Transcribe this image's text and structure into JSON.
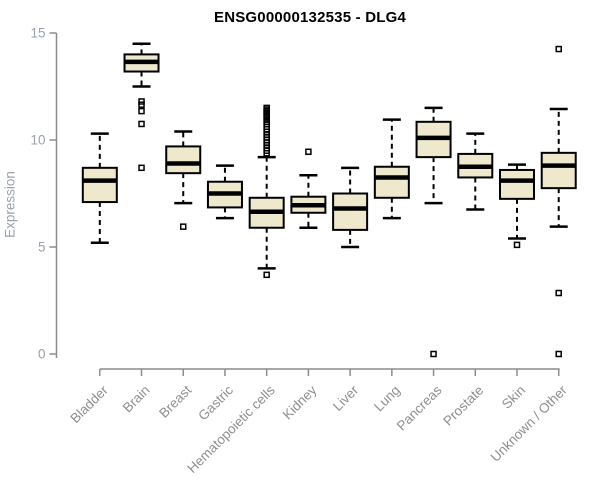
{
  "figure": {
    "title": "ENSG00000132535 - DLG4"
  },
  "chart_data": {
    "type": "boxplot",
    "title": "ENSG00000132535 - DLG4",
    "xlabel": "",
    "ylabel": "Expression",
    "ylim": [
      0,
      15
    ],
    "yticks": [
      0,
      5,
      10,
      15
    ],
    "grid": false,
    "legend": "none",
    "categories": [
      "Bladder",
      "Brain",
      "Breast",
      "Gastric",
      "Hematopoietic cells",
      "Kidney",
      "Liver",
      "Lung",
      "Pancreas",
      "Prostate",
      "Skin",
      "Unknown / Other"
    ],
    "boxes": [
      {
        "category": "Bladder",
        "whisker_low": 5.2,
        "q1": 7.1,
        "median": 8.1,
        "q3": 8.7,
        "whisker_high": 10.3,
        "outliers": []
      },
      {
        "category": "Brain",
        "whisker_low": 12.5,
        "q1": 13.2,
        "median": 13.65,
        "q3": 14.0,
        "whisker_high": 14.5,
        "outliers": [
          11.8,
          11.65,
          11.35,
          10.75,
          8.7
        ]
      },
      {
        "category": "Breast",
        "whisker_low": 7.05,
        "q1": 8.45,
        "median": 8.9,
        "q3": 9.7,
        "whisker_high": 10.4,
        "outliers": [
          5.95
        ]
      },
      {
        "category": "Gastric",
        "whisker_low": 6.35,
        "q1": 6.85,
        "median": 7.5,
        "q3": 8.05,
        "whisker_high": 8.8,
        "outliers": []
      },
      {
        "category": "Hematopoietic cells",
        "whisker_low": 4.0,
        "q1": 5.9,
        "median": 6.65,
        "q3": 7.3,
        "whisker_high": 9.2,
        "outliers": [
          11.5,
          11.42,
          11.35,
          11.28,
          11.2,
          11.12,
          11.05,
          10.95,
          10.85,
          10.75,
          10.62,
          10.5,
          10.38,
          10.25,
          10.12,
          10.0,
          9.88,
          9.75,
          9.62,
          9.5,
          9.38,
          3.7
        ]
      },
      {
        "category": "Kidney",
        "whisker_low": 5.9,
        "q1": 6.6,
        "median": 6.95,
        "q3": 7.35,
        "whisker_high": 8.35,
        "outliers": [
          9.45
        ]
      },
      {
        "category": "Liver",
        "whisker_low": 5.0,
        "q1": 5.8,
        "median": 6.8,
        "q3": 7.5,
        "whisker_high": 8.7,
        "outliers": []
      },
      {
        "category": "Lung",
        "whisker_low": 6.35,
        "q1": 7.3,
        "median": 8.25,
        "q3": 8.75,
        "whisker_high": 10.95,
        "outliers": []
      },
      {
        "category": "Pancreas",
        "whisker_low": 7.05,
        "q1": 9.2,
        "median": 10.1,
        "q3": 10.85,
        "whisker_high": 11.5,
        "outliers": [
          0.0
        ]
      },
      {
        "category": "Prostate",
        "whisker_low": 6.75,
        "q1": 8.25,
        "median": 8.75,
        "q3": 9.35,
        "whisker_high": 10.3,
        "outliers": []
      },
      {
        "category": "Skin",
        "whisker_low": 5.4,
        "q1": 7.25,
        "median": 8.1,
        "q3": 8.6,
        "whisker_high": 8.85,
        "outliers": [
          5.1
        ]
      },
      {
        "category": "Unknown / Other",
        "whisker_low": 5.95,
        "q1": 7.75,
        "median": 8.8,
        "q3": 9.4,
        "whisker_high": 11.45,
        "outliers": [
          14.25,
          2.85,
          0.0
        ]
      }
    ],
    "colors": {
      "box_fill": "#EEE8CD",
      "box_stroke": "#000000",
      "median": "#000000",
      "whisker": "#000000",
      "outlier": "#000000",
      "axis_line": "#8C8C8C",
      "y_tick_label": "#9BA1AA",
      "x_tick_label": "#8F8F8F",
      "title": "#000000",
      "background": "#FFFFFF"
    }
  }
}
